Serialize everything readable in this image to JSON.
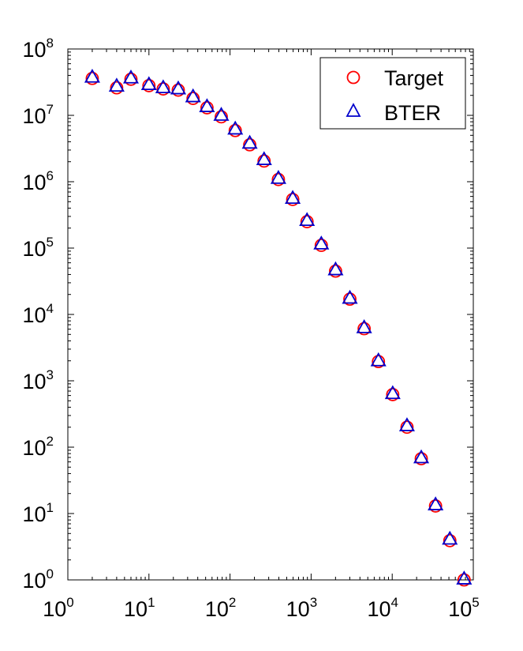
{
  "chart_data": {
    "type": "scatter",
    "x_scale": "log",
    "y_scale": "log",
    "xlim": [
      1,
      100000
    ],
    "ylim": [
      1,
      100000000
    ],
    "grid": false,
    "legend_position": "top-right",
    "x_ticks": [
      {
        "base": "10",
        "exp": "0",
        "value": 1
      },
      {
        "base": "10",
        "exp": "1",
        "value": 10
      },
      {
        "base": "10",
        "exp": "2",
        "value": 100
      },
      {
        "base": "10",
        "exp": "3",
        "value": 1000
      },
      {
        "base": "10",
        "exp": "4",
        "value": 10000
      },
      {
        "base": "10",
        "exp": "5",
        "value": 100000
      }
    ],
    "y_ticks": [
      {
        "base": "10",
        "exp": "0",
        "value": 1
      },
      {
        "base": "10",
        "exp": "1",
        "value": 10
      },
      {
        "base": "10",
        "exp": "2",
        "value": 100
      },
      {
        "base": "10",
        "exp": "3",
        "value": 1000
      },
      {
        "base": "10",
        "exp": "4",
        "value": 10000
      },
      {
        "base": "10",
        "exp": "5",
        "value": 100000
      },
      {
        "base": "10",
        "exp": "6",
        "value": 1000000
      },
      {
        "base": "10",
        "exp": "7",
        "value": 10000000
      },
      {
        "base": "10",
        "exp": "8",
        "value": 100000000
      }
    ],
    "series": [
      {
        "name": "Target",
        "marker": "circle",
        "color": "#ff0000",
        "x": [
          2,
          4,
          6,
          10,
          15,
          23,
          35,
          52,
          78,
          116,
          175,
          263,
          395,
          593,
          890,
          1335,
          2003,
          3005,
          4508,
          6762,
          10143,
          15215,
          22823,
          34235,
          51352,
          77029
        ],
        "y": [
          36000000,
          26000000,
          35000000,
          28000000,
          25000000,
          24000000,
          18000000,
          13000000,
          9500000,
          5900000,
          3600000,
          2050000,
          1080000,
          540000,
          250000,
          110000,
          45000,
          17000,
          6100,
          1950,
          620,
          200,
          67,
          13,
          3.9,
          1
        ]
      },
      {
        "name": "BTER",
        "marker": "triangle",
        "color": "#0000cc",
        "x": [
          2,
          4,
          6,
          10,
          15,
          23,
          35,
          52,
          78,
          116,
          175,
          263,
          395,
          593,
          890,
          1335,
          2003,
          3005,
          4508,
          6762,
          10143,
          15215,
          22823,
          34235,
          51352,
          77029
        ],
        "y": [
          37500000,
          27500000,
          36500000,
          29000000,
          26000000,
          25000000,
          19000000,
          13500000,
          10000000,
          6200000,
          3800000,
          2150000,
          1120000,
          560000,
          260000,
          115000,
          47000,
          17500,
          6300,
          2000,
          640,
          210,
          69,
          13.5,
          4.1,
          1.03
        ]
      }
    ]
  }
}
